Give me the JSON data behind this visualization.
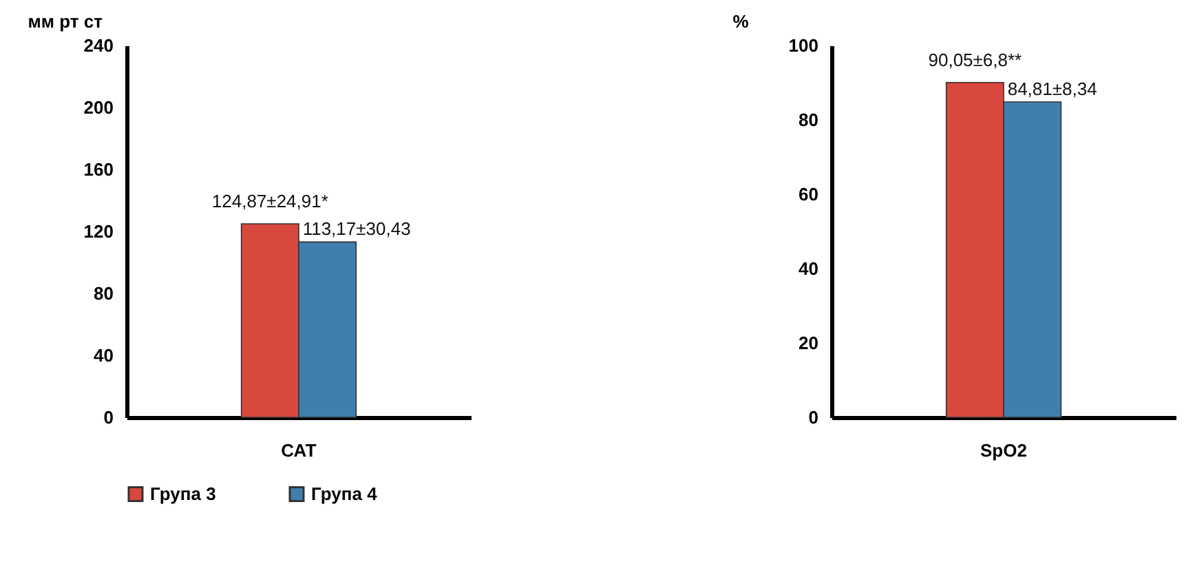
{
  "chart_data": [
    {
      "type": "bar",
      "ylabel": "мм рт ст",
      "categories": [
        "САТ"
      ],
      "ylim": [
        0,
        240
      ],
      "yticks": [
        0,
        40,
        80,
        120,
        160,
        200,
        240
      ],
      "grid": false,
      "legend": "bottom",
      "series": [
        {
          "name": "Група 3",
          "color": "#d9483e",
          "values": [
            124.87
          ],
          "value_labels": [
            "124,87±24,91*"
          ]
        },
        {
          "name": "Група 4",
          "color": "#3f7fae",
          "values": [
            113.17
          ],
          "value_labels": [
            "113,17±30,43"
          ]
        }
      ]
    },
    {
      "type": "bar",
      "ylabel": "%",
      "categories": [
        "SpO2"
      ],
      "ylim": [
        0,
        100
      ],
      "yticks": [
        0,
        20,
        40,
        60,
        80,
        100
      ],
      "grid": false,
      "legend": "bottom",
      "series": [
        {
          "name": "Група 3",
          "color": "#d9483e",
          "values": [
            90.05
          ],
          "value_labels": [
            "90,05±6,8**"
          ]
        },
        {
          "name": "Група 4",
          "color": "#3f7fae",
          "values": [
            84.81
          ],
          "value_labels": [
            "84,81±8,34"
          ]
        }
      ]
    }
  ]
}
